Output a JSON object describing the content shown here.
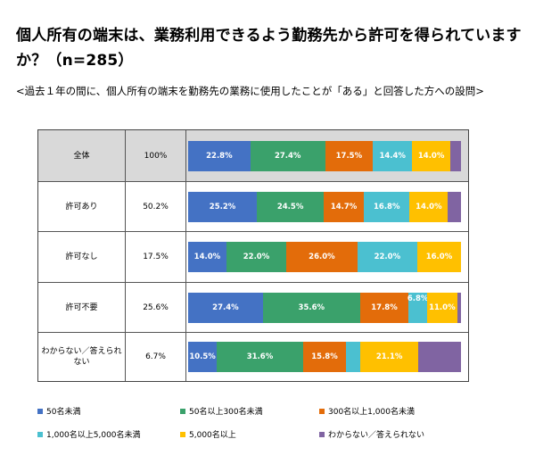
{
  "title": "個人所有の端末は、業務利用できるよう勤務先から許可を得られていますか？（n=285）",
  "subtitle": "<過去１年の間に、個人所有の端末を勤務先の業務に使用したことが「ある」と回答した方への設問>",
  "chart_data": {
    "type": "bar",
    "stacked": true,
    "orientation": "horizontal",
    "title": "個人所有の端末は、業務利用できるよう勤務先から許可を得られていますか？（n=285）",
    "categories": [
      "全体",
      "許可あり",
      "許可なし",
      "許可不要",
      "わからない／答えられない"
    ],
    "row_totals": [
      "100%",
      "50.2%",
      "17.5%",
      "25.6%",
      "6.7%"
    ],
    "series": [
      {
        "name": "50名未満",
        "color": "#4472c4",
        "values": [
          22.8,
          25.2,
          14.0,
          27.4,
          10.5
        ],
        "labels": [
          "22.8%",
          "25.2%",
          "14.0%",
          "27.4%",
          "10.5%"
        ]
      },
      {
        "name": "50名以上300名未満",
        "color": "#3aa16b",
        "values": [
          27.4,
          24.5,
          22.0,
          35.6,
          31.6
        ],
        "labels": [
          "27.4%",
          "24.5%",
          "22.0%",
          "35.6%",
          "31.6%"
        ]
      },
      {
        "name": "300名以上1,000名未満",
        "color": "#e36c0a",
        "values": [
          17.5,
          14.7,
          26.0,
          17.8,
          15.8
        ],
        "labels": [
          "17.5%",
          "14.7%",
          "26.0%",
          "17.8%",
          "15.8%"
        ]
      },
      {
        "name": "1,000名以上5,000名未満",
        "color": "#4bc0d0",
        "values": [
          14.4,
          16.8,
          22.0,
          6.8,
          5.3
        ],
        "labels": [
          "14.4%",
          "16.8%",
          "22.0%",
          "6.8%",
          ""
        ]
      },
      {
        "name": "5,000名以上",
        "color": "#ffc000",
        "values": [
          14.0,
          14.0,
          16.0,
          11.0,
          21.1
        ],
        "labels": [
          "14.0%",
          "14.0%",
          "16.0%",
          "11.0%",
          "21.1%"
        ]
      },
      {
        "name": "わからない／答えられない",
        "color": "#8064a2",
        "values": [
          3.9,
          4.8,
          0,
          1.4,
          15.7
        ],
        "labels": [
          "",
          "",
          "",
          "",
          ""
        ]
      }
    ],
    "legend_position": "bottom"
  }
}
